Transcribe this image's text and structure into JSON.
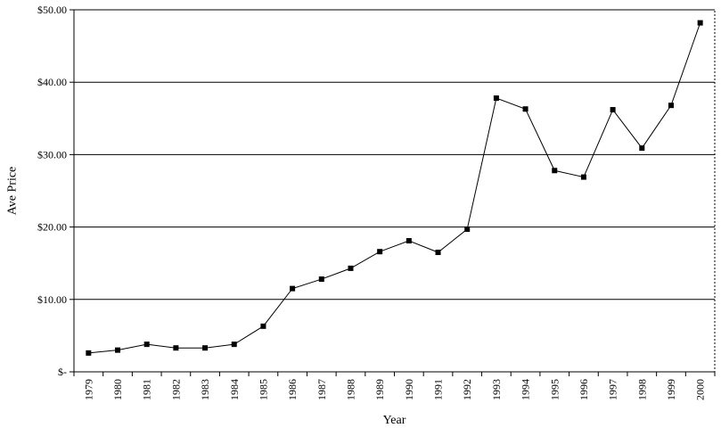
{
  "chart_data": {
    "type": "line",
    "title": "",
    "xlabel": "Year",
    "ylabel": "Ave Price",
    "ylim": [
      0,
      50
    ],
    "yticks": [
      0,
      10,
      20,
      30,
      40,
      50
    ],
    "ytick_labels": [
      "$-",
      "$10.00",
      "$20.00",
      "$30.00",
      "$40.00",
      "$50.00"
    ],
    "grid": "horizontal",
    "categories": [
      "1979",
      "1980",
      "1981",
      "1982",
      "1983",
      "1984",
      "1985",
      "1986",
      "1987",
      "1988",
      "1989",
      "1990",
      "1991",
      "1992",
      "1993",
      "1994",
      "1995",
      "1996",
      "1997",
      "1998",
      "1999",
      "2000"
    ],
    "series": [
      {
        "values": [
          2.6,
          3.0,
          3.8,
          3.3,
          3.3,
          3.8,
          6.3,
          11.5,
          12.8,
          14.3,
          16.6,
          18.1,
          16.5,
          19.7,
          37.8,
          36.3,
          27.8,
          26.9,
          36.2,
          30.9,
          36.8,
          48.2
        ],
        "color": "#000000",
        "marker": "square"
      }
    ]
  }
}
